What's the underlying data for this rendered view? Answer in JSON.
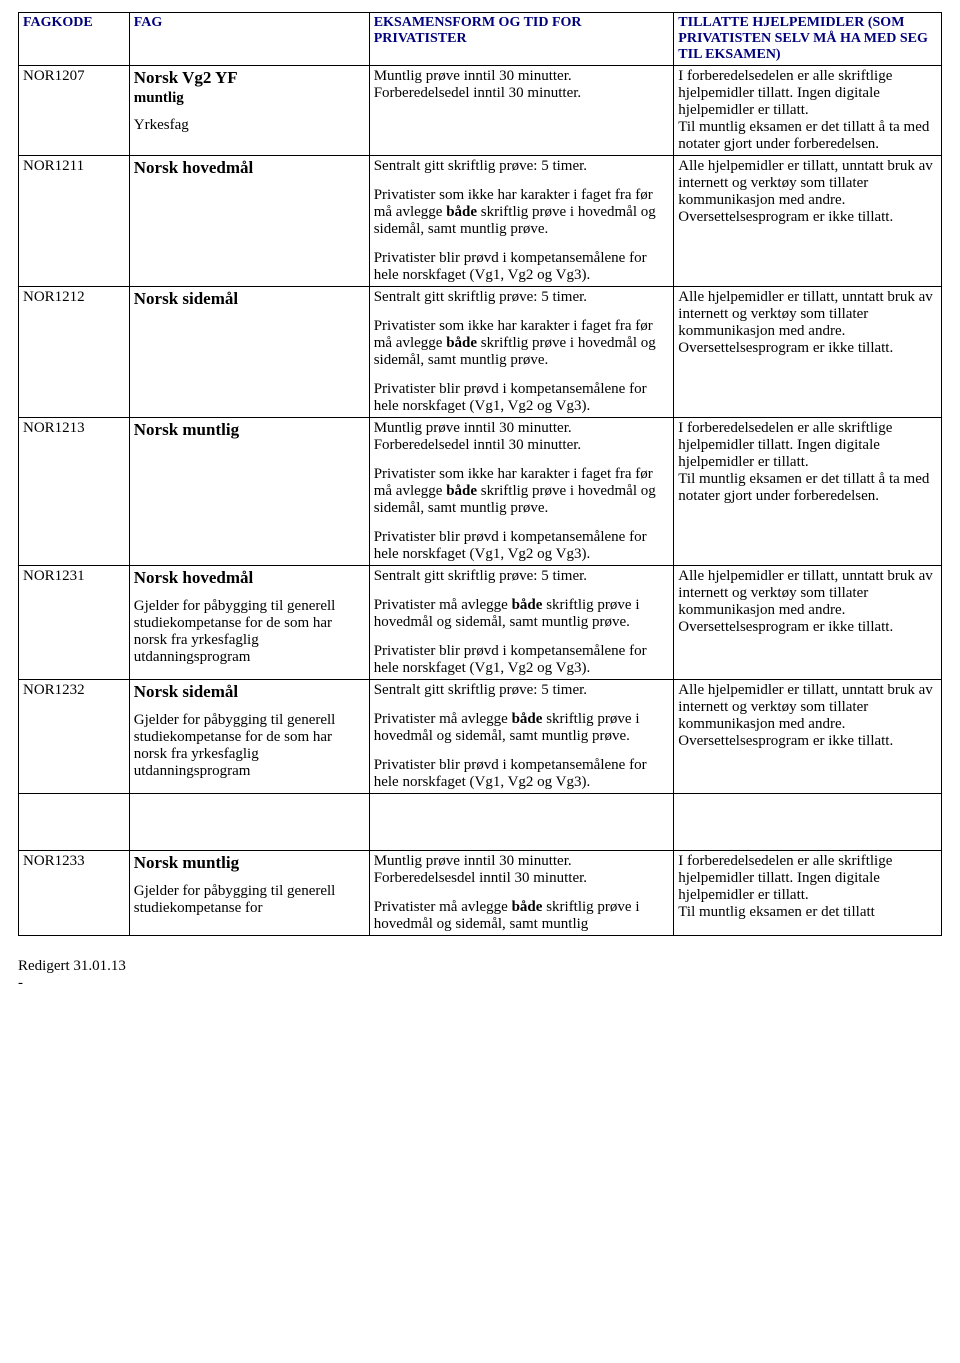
{
  "headers": {
    "fagkode": "FAGKODE",
    "fag": "FAG",
    "eksamensform": "EKSAMENSFORM OG TID FOR PRIVATISTER",
    "hjelpemidler": "TILLATTE HJELPEMIDLER (SOM PRIVATISTEN SELV MÅ HA MED SEG TIL EKSAMEN)"
  },
  "rows": [
    {
      "code": "NOR1207",
      "title": "Norsk Vg2 YF",
      "sub": "muntlig",
      "note": "Yrkesfag",
      "eks_p1": "Muntlig prøve inntil 30 minutter. Forberedelsedel inntil 30 minutter.",
      "hj_p1": "I forberedelsedelen er alle skriftlige hjelpemidler tillatt. Ingen digitale hjelpemidler er tillatt.",
      "hj_p2": "Til muntlig eksamen er det tillatt å ta med notater gjort under forberedelsen."
    },
    {
      "code": "NOR1211",
      "title": "Norsk hovedmål",
      "eks_p1": "Sentralt gitt skriftlig prøve: 5 timer.",
      "eks_p2a": "Privatister som ikke har karakter i faget fra før må avlegge ",
      "eks_p2b": "både",
      "eks_p2c": " skriftlig prøve i hovedmål og sidemål, samt muntlig prøve.",
      "eks_p3": "Privatister blir prøvd i kompetansemålene for hele norskfaget (Vg1, Vg2 og Vg3).",
      "hj_p1": "Alle hjelpemidler er tillatt, unntatt bruk av internett og verktøy som tillater kommunikasjon med andre. Oversettelsesprogram er ikke tillatt."
    },
    {
      "code": "NOR1212",
      "title": "Norsk sidemål",
      "eks_p1": "Sentralt gitt skriftlig prøve: 5 timer.",
      "eks_p2a": "Privatister som ikke har karakter i faget fra før må avlegge ",
      "eks_p2b": "både",
      "eks_p2c": " skriftlig prøve i hovedmål og sidemål, samt muntlig prøve.",
      "eks_p3": "Privatister blir prøvd i kompetansemålene for hele norskfaget (Vg1, Vg2 og Vg3).",
      "hj_p1": "Alle hjelpemidler er tillatt, unntatt bruk av internett og verktøy som tillater kommunikasjon med andre. Oversettelsesprogram er ikke tillatt."
    },
    {
      "code": "NOR1213",
      "title": "Norsk muntlig",
      "eks_p1": "Muntlig prøve inntil 30 minutter. Forberedelsedel inntil 30 minutter.",
      "eks_p2a": "Privatister som ikke har karakter i faget fra før må avlegge ",
      "eks_p2b": "både",
      "eks_p2c": " skriftlig prøve i hovedmål og sidemål, samt muntlig prøve.",
      "eks_p3": "Privatister blir prøvd i kompetansemålene for hele norskfaget (Vg1, Vg2 og Vg3).",
      "hj_p1": "I forberedelsedelen er alle skriftlige hjelpemidler tillatt. Ingen digitale hjelpemidler er tillatt.",
      "hj_p2": "Til muntlig eksamen er det tillatt å ta med notater gjort under forberedelsen."
    },
    {
      "code": "NOR1231",
      "title": "Norsk hovedmål",
      "note": "Gjelder for påbygging til generell studiekompetanse for de som har norsk fra yrkesfaglig utdanningsprogram",
      "eks_p1": "Sentralt gitt skriftlig prøve: 5 timer.",
      "eks_p2a": "Privatister må avlegge ",
      "eks_p2b": "både",
      "eks_p2c": " skriftlig prøve i hovedmål og sidemål, samt muntlig prøve.",
      "eks_p3": "Privatister blir prøvd i kompetansemålene for hele norskfaget (Vg1, Vg2 og Vg3).",
      "hj_p1": "Alle hjelpemidler er tillatt, unntatt bruk av internett og verktøy som tillater kommunikasjon med andre. Oversettelsesprogram er ikke tillatt."
    },
    {
      "code": "NOR1232",
      "title": "Norsk sidemål",
      "note": "Gjelder for påbygging til generell studiekompetanse for de som har norsk fra yrkesfaglig utdanningsprogram",
      "eks_p1": "Sentralt gitt skriftlig prøve: 5 timer.",
      "eks_p2a": "Privatister må avlegge ",
      "eks_p2b": "både",
      "eks_p2c": " skriftlig prøve i hovedmål og sidemål, samt muntlig prøve.",
      "eks_p3": "Privatister blir prøvd i kompetansemålene for hele norskfaget (Vg1, Vg2 og Vg3).",
      "hj_p1": "Alle hjelpemidler er tillatt, unntatt bruk av internett og verktøy som tillater kommunikasjon med andre. Oversettelsesprogram er ikke tillatt."
    }
  ],
  "row2": {
    "code": "NOR1233",
    "title": "Norsk muntlig",
    "note": "Gjelder for påbygging til generell studiekompetanse for",
    "eks_p1": "Muntlig prøve inntil 30 minutter. Forberedelsesdel inntil 30 minutter.",
    "eks_p2a": "Privatister må avlegge ",
    "eks_p2b": "både",
    "eks_p2c": " skriftlig prøve i hovedmål og sidemål, samt muntlig",
    "hj_p1": "I forberedelsedelen er alle skriftlige hjelpemidler tillatt. Ingen digitale hjelpemidler er tillatt.",
    "hj_p2": "Til muntlig eksamen er det tillatt"
  },
  "footer": {
    "line1": "Redigert 31.01.13",
    "line2": "-"
  }
}
